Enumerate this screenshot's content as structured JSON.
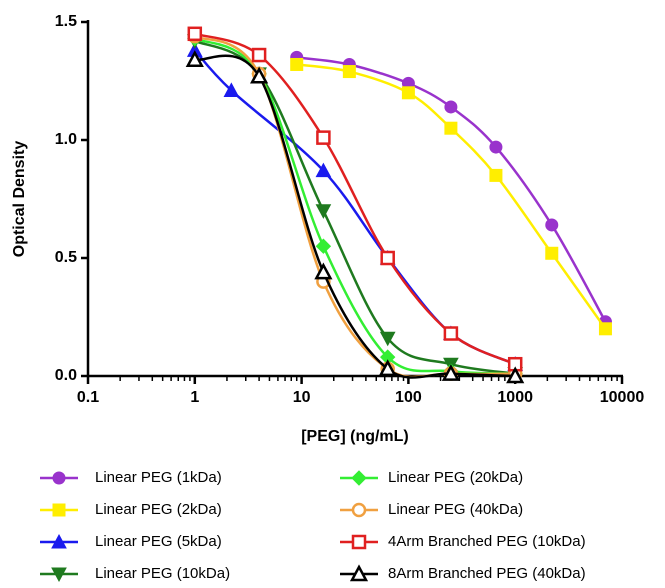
{
  "chart_data": {
    "type": "line",
    "xlabel": "[PEG] (ng/mL)",
    "ylabel": "Optical Density",
    "xscale": "log",
    "xlim": [
      0.1,
      10000
    ],
    "xticks": [
      0.1,
      1,
      10,
      100,
      1000,
      10000
    ],
    "ylim": [
      0,
      1.5
    ],
    "yticks": [
      {
        "value": 0,
        "label": "0.0"
      },
      {
        "value": 0.5,
        "label": "0.5"
      },
      {
        "value": 1,
        "label": "1.0"
      },
      {
        "value": 1.5,
        "label": "1.5"
      }
    ],
    "series": [
      {
        "name": "Linear PEG (1kDa)",
        "color": "#9933cc",
        "marker": "circle",
        "x": [
          9,
          28,
          100,
          250,
          660,
          2200,
          7000
        ],
        "values": [
          1.35,
          1.32,
          1.24,
          1.14,
          0.97,
          0.64,
          0.23
        ]
      },
      {
        "name": "Linear PEG (2kDa)",
        "color": "#ffee00",
        "marker": "square",
        "x": [
          9,
          28,
          100,
          250,
          660,
          2200,
          7000
        ],
        "values": [
          1.32,
          1.29,
          1.2,
          1.05,
          0.85,
          0.52,
          0.2
        ]
      },
      {
        "name": "Linear PEG (5kDa)",
        "color": "#1a1aee",
        "marker": "triangle",
        "x": [
          1,
          2.2,
          16,
          64,
          250,
          1000
        ],
        "values": [
          1.38,
          1.21,
          0.87,
          0.5,
          0.18,
          0.05
        ]
      },
      {
        "name": "Linear PEG (10kDa)",
        "color": "#1f7a1f",
        "marker": "triangle-down",
        "x": [
          1,
          4,
          16,
          64,
          250,
          1000
        ],
        "values": [
          1.42,
          1.28,
          0.7,
          0.16,
          0.05,
          0.01
        ]
      },
      {
        "name": "Linear PEG (20kDa)",
        "color": "#33ee33",
        "marker": "diamond",
        "x": [
          1,
          4,
          16,
          64,
          250,
          1000
        ],
        "values": [
          1.43,
          1.28,
          0.55,
          0.08,
          0.02,
          0.01
        ]
      },
      {
        "name": "Linear PEG (40kDa)",
        "color": "#f0a040",
        "marker": "circle-open",
        "x": [
          1,
          4,
          16,
          64,
          250,
          1000
        ],
        "values": [
          1.44,
          1.28,
          0.4,
          0.03,
          0.01,
          0.01
        ]
      },
      {
        "name": "4Arm Branched PEG (10kDa)",
        "color": "#e02020",
        "marker": "square-open",
        "x": [
          1,
          4,
          16,
          64,
          250,
          1000
        ],
        "values": [
          1.45,
          1.36,
          1.01,
          0.5,
          0.18,
          0.05
        ]
      },
      {
        "name": "8Arm Branched PEG (40kDa)",
        "color": "#000000",
        "marker": "triangle-open",
        "x": [
          1,
          4,
          16,
          64,
          250,
          1000
        ],
        "values": [
          1.34,
          1.27,
          0.44,
          0.03,
          0.01,
          0
        ]
      }
    ]
  }
}
